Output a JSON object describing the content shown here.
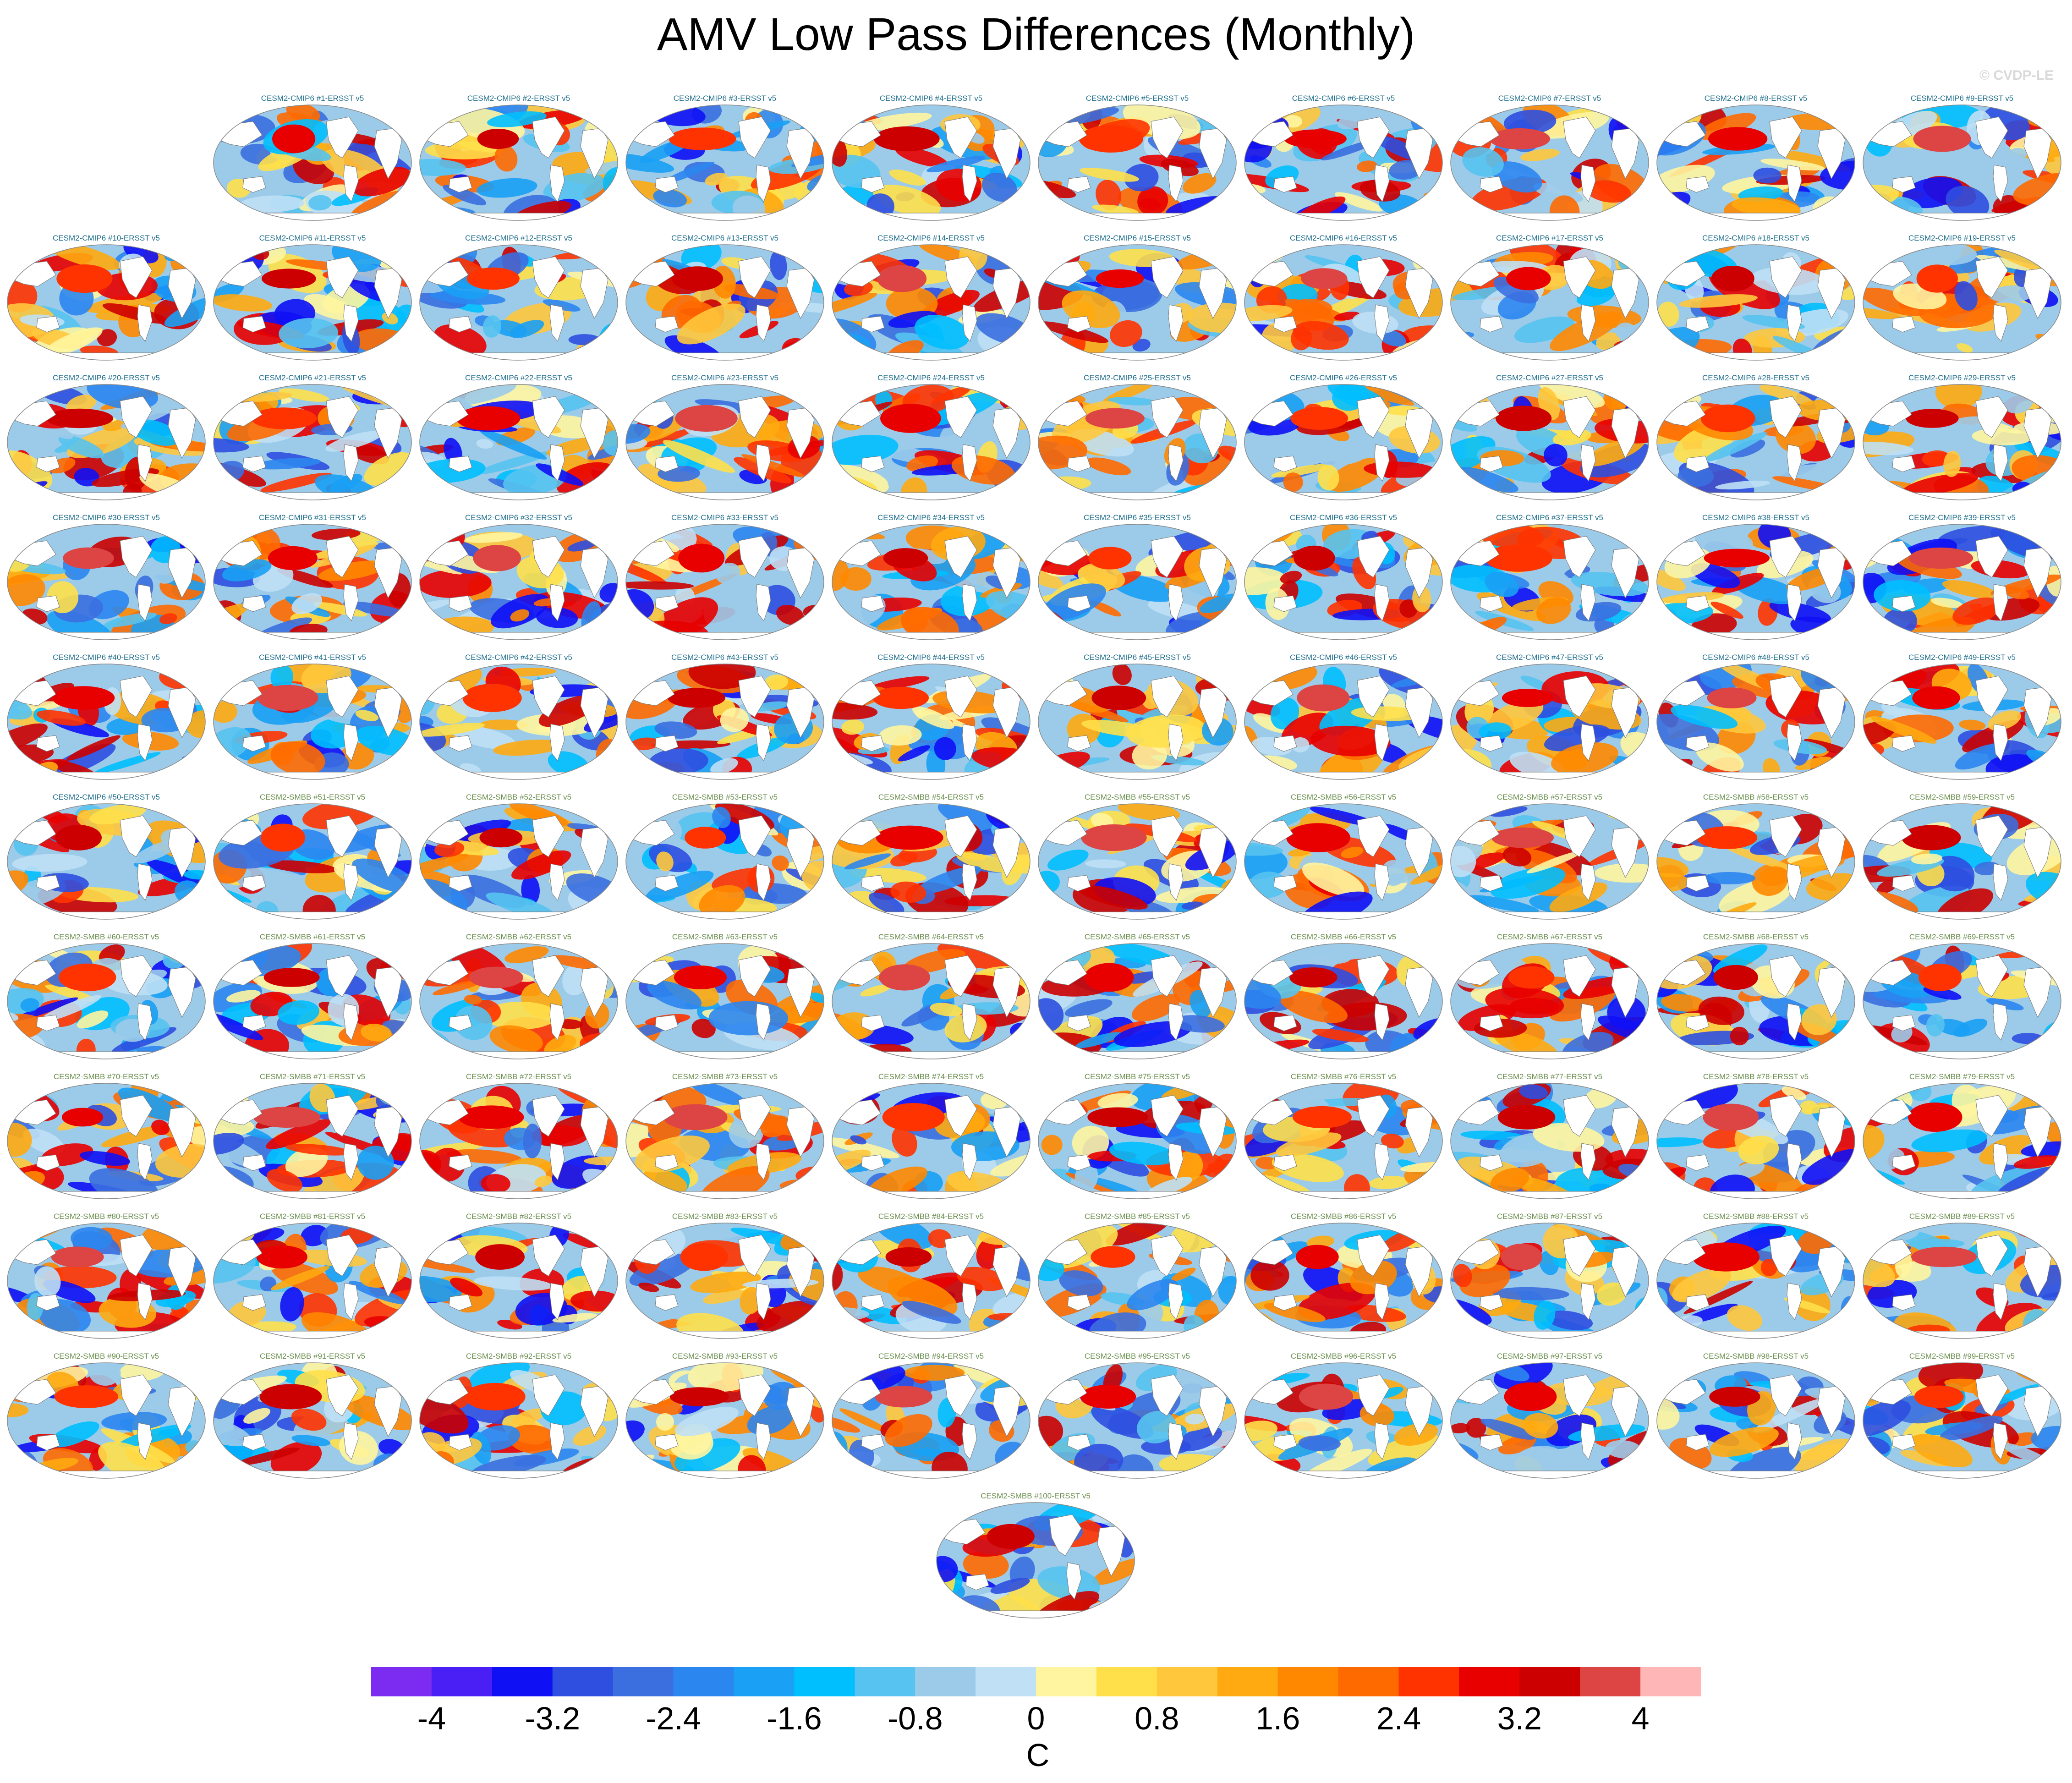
{
  "title": "AMV Low Pass Differences (Monthly)",
  "watermark": "© CVDP-LE",
  "chart_data": {
    "type": "heatmap",
    "title": "AMV Low Pass Differences (Monthly)",
    "description_units": "C",
    "panel_layout": "9 panels in first row (columns 2-10), then 9 rows of 10, then 1 centered panel",
    "panel_title_colors": {
      "CESM2-CMIP6": "#1f6e8c",
      "CESM2-SMBB": "#6b8e4e"
    },
    "panels": [
      "CESM2-CMIP6 #1-ERSST v5",
      "CESM2-CMIP6 #2-ERSST v5",
      "CESM2-CMIP6 #3-ERSST v5",
      "CESM2-CMIP6 #4-ERSST v5",
      "CESM2-CMIP6 #5-ERSST v5",
      "CESM2-CMIP6 #6-ERSST v5",
      "CESM2-CMIP6 #7-ERSST v5",
      "CESM2-CMIP6 #8-ERSST v5",
      "CESM2-CMIP6 #9-ERSST v5",
      "CESM2-CMIP6 #10-ERSST v5",
      "CESM2-CMIP6 #11-ERSST v5",
      "CESM2-CMIP6 #12-ERSST v5",
      "CESM2-CMIP6 #13-ERSST v5",
      "CESM2-CMIP6 #14-ERSST v5",
      "CESM2-CMIP6 #15-ERSST v5",
      "CESM2-CMIP6 #16-ERSST v5",
      "CESM2-CMIP6 #17-ERSST v5",
      "CESM2-CMIP6 #18-ERSST v5",
      "CESM2-CMIP6 #19-ERSST v5",
      "CESM2-CMIP6 #20-ERSST v5",
      "CESM2-CMIP6 #21-ERSST v5",
      "CESM2-CMIP6 #22-ERSST v5",
      "CESM2-CMIP6 #23-ERSST v5",
      "CESM2-CMIP6 #24-ERSST v5",
      "CESM2-CMIP6 #25-ERSST v5",
      "CESM2-CMIP6 #26-ERSST v5",
      "CESM2-CMIP6 #27-ERSST v5",
      "CESM2-CMIP6 #28-ERSST v5",
      "CESM2-CMIP6 #29-ERSST v5",
      "CESM2-CMIP6 #30-ERSST v5",
      "CESM2-CMIP6 #31-ERSST v5",
      "CESM2-CMIP6 #32-ERSST v5",
      "CESM2-CMIP6 #33-ERSST v5",
      "CESM2-CMIP6 #34-ERSST v5",
      "CESM2-CMIP6 #35-ERSST v5",
      "CESM2-CMIP6 #36-ERSST v5",
      "CESM2-CMIP6 #37-ERSST v5",
      "CESM2-CMIP6 #38-ERSST v5",
      "CESM2-CMIP6 #39-ERSST v5",
      "CESM2-CMIP6 #40-ERSST v5",
      "CESM2-CMIP6 #41-ERSST v5",
      "CESM2-CMIP6 #42-ERSST v5",
      "CESM2-CMIP6 #43-ERSST v5",
      "CESM2-CMIP6 #44-ERSST v5",
      "CESM2-CMIP6 #45-ERSST v5",
      "CESM2-CMIP6 #46-ERSST v5",
      "CESM2-CMIP6 #47-ERSST v5",
      "CESM2-CMIP6 #48-ERSST v5",
      "CESM2-CMIP6 #49-ERSST v5",
      "CESM2-CMIP6 #50-ERSST v5",
      "CESM2-SMBB #51-ERSST v5",
      "CESM2-SMBB #52-ERSST v5",
      "CESM2-SMBB #53-ERSST v5",
      "CESM2-SMBB #54-ERSST v5",
      "CESM2-SMBB #55-ERSST v5",
      "CESM2-SMBB #56-ERSST v5",
      "CESM2-SMBB #57-ERSST v5",
      "CESM2-SMBB #58-ERSST v5",
      "CESM2-SMBB #59-ERSST v5",
      "CESM2-SMBB #60-ERSST v5",
      "CESM2-SMBB #61-ERSST v5",
      "CESM2-SMBB #62-ERSST v5",
      "CESM2-SMBB #63-ERSST v5",
      "CESM2-SMBB #64-ERSST v5",
      "CESM2-SMBB #65-ERSST v5",
      "CESM2-SMBB #66-ERSST v5",
      "CESM2-SMBB #67-ERSST v5",
      "CESM2-SMBB #68-ERSST v5",
      "CESM2-SMBB #69-ERSST v5",
      "CESM2-SMBB #70-ERSST v5",
      "CESM2-SMBB #71-ERSST v5",
      "CESM2-SMBB #72-ERSST v5",
      "CESM2-SMBB #73-ERSST v5",
      "CESM2-SMBB #74-ERSST v5",
      "CESM2-SMBB #75-ERSST v5",
      "CESM2-SMBB #76-ERSST v5",
      "CESM2-SMBB #77-ERSST v5",
      "CESM2-SMBB #78-ERSST v5",
      "CESM2-SMBB #79-ERSST v5",
      "CESM2-SMBB #80-ERSST v5",
      "CESM2-SMBB #81-ERSST v5",
      "CESM2-SMBB #82-ERSST v5",
      "CESM2-SMBB #83-ERSST v5",
      "CESM2-SMBB #84-ERSST v5",
      "CESM2-SMBB #85-ERSST v5",
      "CESM2-SMBB #86-ERSST v5",
      "CESM2-SMBB #87-ERSST v5",
      "CESM2-SMBB #88-ERSST v5",
      "CESM2-SMBB #89-ERSST v5",
      "CESM2-SMBB #90-ERSST v5",
      "CESM2-SMBB #91-ERSST v5",
      "CESM2-SMBB #92-ERSST v5",
      "CESM2-SMBB #93-ERSST v5",
      "CESM2-SMBB #94-ERSST v5",
      "CESM2-SMBB #95-ERSST v5",
      "CESM2-SMBB #96-ERSST v5",
      "CESM2-SMBB #97-ERSST v5",
      "CESM2-SMBB #98-ERSST v5",
      "CESM2-SMBB #99-ERSST v5",
      "CESM2-SMBB #100-ERSST v5"
    ],
    "colorbar": {
      "label": "C",
      "range": [
        -4.4,
        4.4
      ],
      "tick_labels": [
        "-4",
        "-3.2",
        "-2.4",
        "-1.6",
        "-0.8",
        "0",
        "0.8",
        "1.6",
        "2.4",
        "3.2",
        "4"
      ],
      "tick_values": [
        -4,
        -3.2,
        -2.4,
        -1.6,
        -0.8,
        0,
        0.8,
        1.6,
        2.4,
        3.2,
        4
      ],
      "colors": [
        "#7b2cf0",
        "#4a1ff5",
        "#1010f5",
        "#2e4fe0",
        "#3b6fe0",
        "#2c86f0",
        "#1aa0f5",
        "#00bfff",
        "#56c3f0",
        "#9ccbea",
        "#bfe0f5",
        "#fff5a0",
        "#ffe04a",
        "#ffc83c",
        "#ffaa10",
        "#ff8800",
        "#ff6a00",
        "#ff3300",
        "#e80000",
        "#cc0000",
        "#dd4444",
        "#ffb6b6"
      ]
    }
  }
}
